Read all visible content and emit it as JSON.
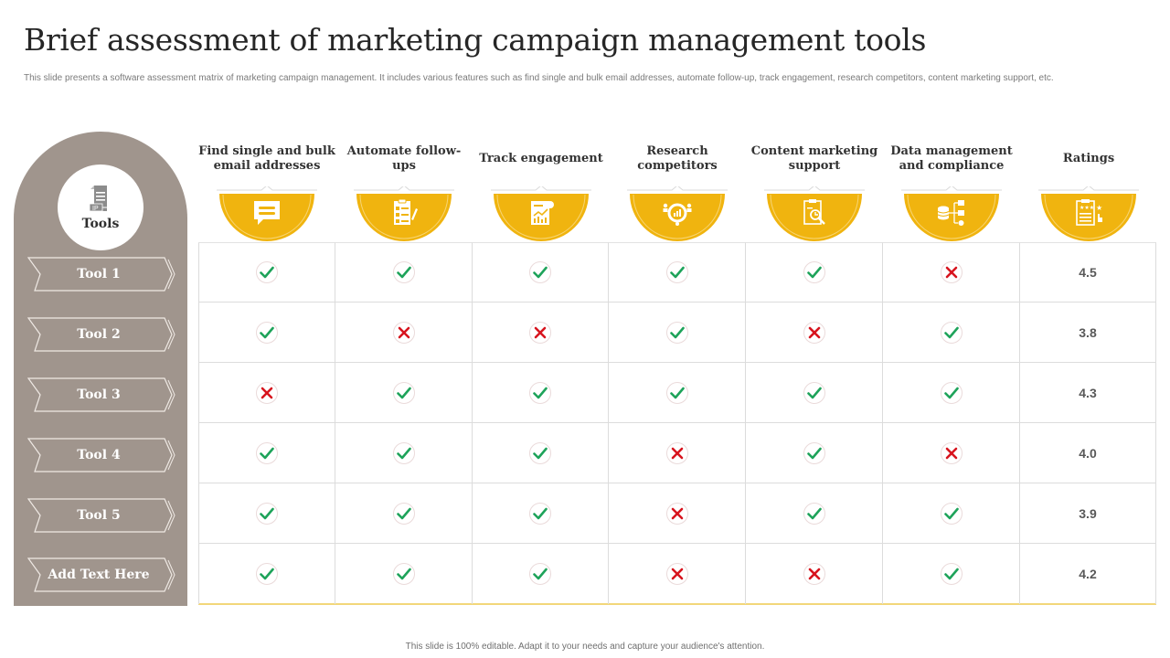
{
  "slide": {
    "title": "Brief assessment of marketing campaign management tools",
    "subtitle": "This slide presents a software assessment matrix of marketing  campaign management.  It includes various features such as find single and bulk email addresses, automate follow-up, track engagement, research competitors, content marketing support, etc.",
    "footer": "This slide is 100% editable.  Adapt it to your needs and capture your audience's attention."
  },
  "colors": {
    "pillar": "#a0958d",
    "badge": "#f0b40f",
    "check": "#1ea35a",
    "cross": "#d7141e",
    "grid_line": "#dcdcdc",
    "bottom_rule": "#f2d77a"
  },
  "sidebar": {
    "heading": "Tools",
    "heading_icon": "document-ip-icon",
    "tools": [
      {
        "label": "Tool 1"
      },
      {
        "label": "Tool 2"
      },
      {
        "label": "Tool 3"
      },
      {
        "label": "Tool 4"
      },
      {
        "label": "Tool 5"
      },
      {
        "label": "Add Text Here"
      }
    ]
  },
  "columns": [
    {
      "label": "Find single and bulk email addresses",
      "icon": "chat-bubble-icon"
    },
    {
      "label": "Automate follow-ups",
      "icon": "checklist-clipboard-icon"
    },
    {
      "label": "Track engagement",
      "icon": "analytics-report-icon"
    },
    {
      "label": "Research competitors",
      "icon": "competitor-analysis-icon"
    },
    {
      "label": "Content marketing support",
      "icon": "clipboard-search-icon"
    },
    {
      "label": "Data management and compliance",
      "icon": "database-network-icon"
    },
    {
      "label": "Ratings",
      "icon": "rating-clipboard-icon"
    }
  ],
  "matrix": [
    {
      "tool": "Tool 1",
      "features": [
        true,
        true,
        true,
        true,
        true,
        false
      ],
      "rating": "4.5"
    },
    {
      "tool": "Tool 2",
      "features": [
        true,
        false,
        false,
        true,
        false,
        true
      ],
      "rating": "3.8"
    },
    {
      "tool": "Tool 3",
      "features": [
        false,
        true,
        true,
        true,
        true,
        true
      ],
      "rating": "4.3"
    },
    {
      "tool": "Tool 4",
      "features": [
        true,
        true,
        true,
        false,
        true,
        false
      ],
      "rating": "4.0"
    },
    {
      "tool": "Tool 5",
      "features": [
        true,
        true,
        true,
        false,
        true,
        true
      ],
      "rating": "3.9"
    },
    {
      "tool": "Add Text Here",
      "features": [
        true,
        true,
        true,
        false,
        false,
        true
      ],
      "rating": "4.2"
    }
  ]
}
